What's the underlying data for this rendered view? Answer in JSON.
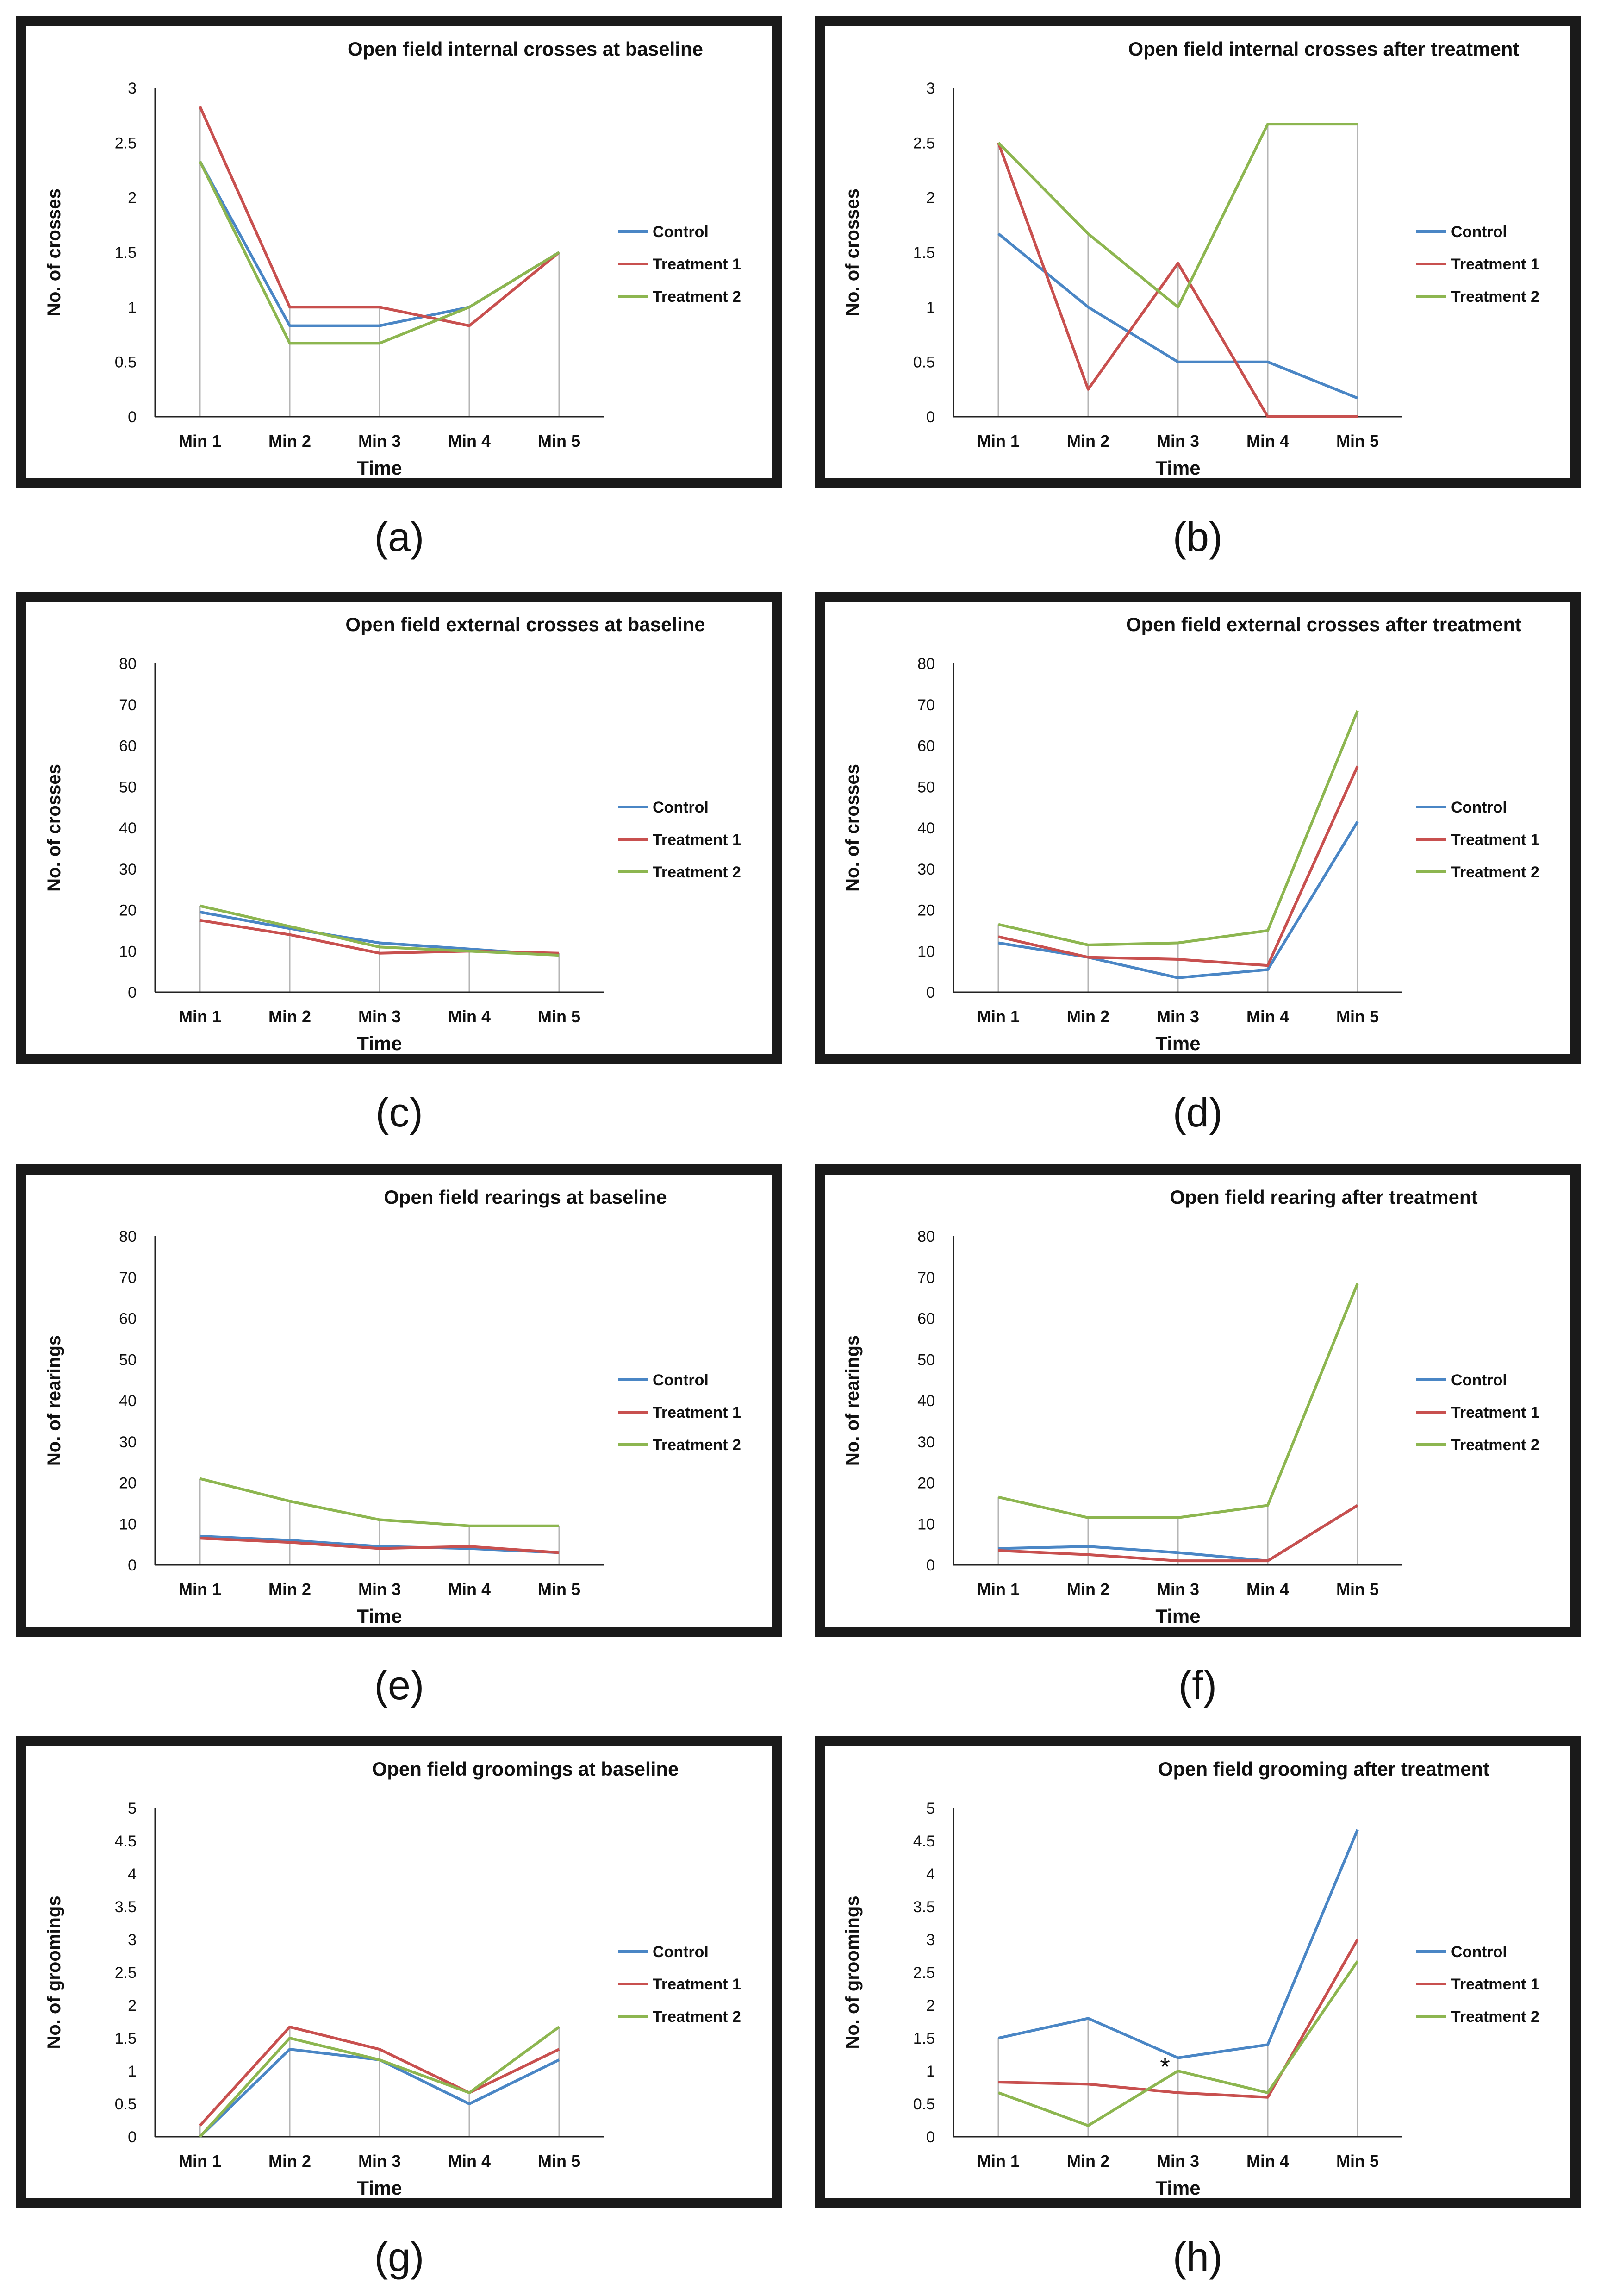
{
  "figure": {
    "colors": {
      "control": "#4A86C5",
      "treatment1": "#C8504F",
      "treatment2": "#8DB650",
      "frame": "#1a1a1a",
      "axis": "#222222",
      "dropline": "#b5b5b5"
    }
  },
  "chart_data": [
    {
      "id": "a",
      "label": "(a)",
      "type": "line",
      "title": "Open field internal crosses at baseline",
      "xlabel": "Time",
      "ylabel": "No. of crosses",
      "categories": [
        "Min 1",
        "Min 2",
        "Min 3",
        "Min 4",
        "Min 5"
      ],
      "ylim": [
        0,
        3
      ],
      "yticks": [
        "0",
        "0.5",
        "1",
        "1.5",
        "2",
        "2.5",
        "3"
      ],
      "legend": "right",
      "series": [
        {
          "name": "Control",
          "values": [
            2.33,
            0.83,
            0.83,
            1.0,
            1.5
          ]
        },
        {
          "name": "Treatment 1",
          "values": [
            2.83,
            1.0,
            1.0,
            0.83,
            1.5
          ]
        },
        {
          "name": "Treatment 2",
          "values": [
            2.33,
            0.67,
            0.67,
            1.0,
            1.5
          ]
        }
      ]
    },
    {
      "id": "b",
      "label": "(b)",
      "type": "line",
      "title": "Open field internal crosses after treatment",
      "xlabel": "Time",
      "ylabel": "No. of crosses",
      "categories": [
        "Min 1",
        "Min 2",
        "Min 3",
        "Min 4",
        "Min 5"
      ],
      "ylim": [
        0,
        3
      ],
      "yticks": [
        "0",
        "0.5",
        "1",
        "1.5",
        "2",
        "2.5",
        "3"
      ],
      "legend": "right",
      "series": [
        {
          "name": "Control",
          "values": [
            1.67,
            1.0,
            0.5,
            0.5,
            0.17
          ]
        },
        {
          "name": "Treatment 1",
          "values": [
            2.5,
            0.25,
            1.4,
            0.0,
            0.0
          ]
        },
        {
          "name": "Treatment 2",
          "values": [
            2.5,
            1.67,
            1.0,
            2.67,
            2.67
          ]
        }
      ]
    },
    {
      "id": "c",
      "label": "(c)",
      "type": "line",
      "title": "Open field external crosses at baseline",
      "xlabel": "Time",
      "ylabel": "No. of crosses",
      "categories": [
        "Min 1",
        "Min 2",
        "Min 3",
        "Min 4",
        "Min 5"
      ],
      "ylim": [
        0,
        80
      ],
      "yticks": [
        "0",
        "10",
        "20",
        "30",
        "40",
        "50",
        "60",
        "70",
        "80"
      ],
      "legend": "right",
      "series": [
        {
          "name": "Control",
          "values": [
            19.5,
            15.5,
            12.0,
            10.5,
            9.0
          ]
        },
        {
          "name": "Treatment 1",
          "values": [
            17.5,
            14.0,
            9.5,
            10.0,
            9.5
          ]
        },
        {
          "name": "Treatment 2",
          "values": [
            21.0,
            16.0,
            11.0,
            10.0,
            9.0
          ]
        }
      ]
    },
    {
      "id": "d",
      "label": "(d)",
      "type": "line",
      "title": "Open field external crosses after treatment",
      "xlabel": "Time",
      "ylabel": "No. of crosses",
      "categories": [
        "Min 1",
        "Min 2",
        "Min 3",
        "Min 4",
        "Min 5"
      ],
      "ylim": [
        0,
        80
      ],
      "yticks": [
        "0",
        "10",
        "20",
        "30",
        "40",
        "50",
        "60",
        "70",
        "80"
      ],
      "legend": "right",
      "series": [
        {
          "name": "Control",
          "values": [
            12.0,
            8.5,
            3.5,
            5.5,
            41.5
          ]
        },
        {
          "name": "Treatment 1",
          "values": [
            13.5,
            8.5,
            8.0,
            6.5,
            55.0
          ]
        },
        {
          "name": "Treatment 2",
          "values": [
            16.5,
            11.5,
            12.0,
            15.0,
            68.5
          ]
        }
      ]
    },
    {
      "id": "e",
      "label": "(e)",
      "type": "line",
      "title": "Open field rearings at baseline",
      "xlabel": "Time",
      "ylabel": "No. of rearings",
      "categories": [
        "Min 1",
        "Min 2",
        "Min 3",
        "Min 4",
        "Min 5"
      ],
      "ylim": [
        0,
        80
      ],
      "yticks": [
        "0",
        "10",
        "20",
        "30",
        "40",
        "50",
        "60",
        "70",
        "80"
      ],
      "legend": "right",
      "series": [
        {
          "name": "Control",
          "values": [
            7.0,
            6.0,
            4.5,
            4.0,
            3.0
          ]
        },
        {
          "name": "Treatment 1",
          "values": [
            6.5,
            5.5,
            4.0,
            4.5,
            3.0
          ]
        },
        {
          "name": "Treatment 2",
          "values": [
            21.0,
            15.5,
            11.0,
            9.5,
            9.5
          ]
        }
      ]
    },
    {
      "id": "f",
      "label": "(f)",
      "type": "line",
      "title": "Open field rearing after treatment",
      "xlabel": "Time",
      "ylabel": "No. of rearings",
      "categories": [
        "Min 1",
        "Min 2",
        "Min 3",
        "Min 4",
        "Min 5"
      ],
      "ylim": [
        0,
        80
      ],
      "yticks": [
        "0",
        "10",
        "20",
        "30",
        "40",
        "50",
        "60",
        "70",
        "80"
      ],
      "legend": "right",
      "series": [
        {
          "name": "Control",
          "values": [
            4.0,
            4.5,
            3.0,
            1.0,
            14.5
          ]
        },
        {
          "name": "Treatment 1",
          "values": [
            3.5,
            2.5,
            1.0,
            1.0,
            14.5
          ]
        },
        {
          "name": "Treatment 2",
          "values": [
            16.5,
            11.5,
            11.5,
            14.5,
            68.5
          ]
        }
      ]
    },
    {
      "id": "g",
      "label": "(g)",
      "type": "line",
      "title": "Open field groomings at baseline",
      "xlabel": "Time",
      "ylabel": "No. of groomings",
      "categories": [
        "Min 1",
        "Min 2",
        "Min 3",
        "Min 4",
        "Min 5"
      ],
      "ylim": [
        0,
        5
      ],
      "yticks": [
        "0",
        "0.5",
        "1",
        "1.5",
        "2",
        "2.5",
        "3",
        "3.5",
        "4",
        "4.5",
        "5"
      ],
      "legend": "right",
      "series": [
        {
          "name": "Control",
          "values": [
            0.0,
            1.33,
            1.17,
            0.5,
            1.17
          ]
        },
        {
          "name": "Treatment 1",
          "values": [
            0.17,
            1.67,
            1.33,
            0.67,
            1.33
          ]
        },
        {
          "name": "Treatment 2",
          "values": [
            0.0,
            1.5,
            1.17,
            0.67,
            1.67
          ]
        }
      ]
    },
    {
      "id": "h",
      "label": "(h)",
      "type": "line",
      "title": "Open field grooming after treatment",
      "xlabel": "Time",
      "ylabel": "No. of groomings",
      "categories": [
        "Min 1",
        "Min 2",
        "Min 3",
        "Min 4",
        "Min 5"
      ],
      "ylim": [
        0,
        5
      ],
      "yticks": [
        "0",
        "0.5",
        "1",
        "1.5",
        "2",
        "2.5",
        "3",
        "3.5",
        "4",
        "4.5",
        "5"
      ],
      "legend": "right",
      "annotation": {
        "text": "*",
        "category": "Min 3",
        "value": 1.0
      },
      "series": [
        {
          "name": "Control",
          "values": [
            1.5,
            1.8,
            1.2,
            1.4,
            4.67
          ]
        },
        {
          "name": "Treatment 1",
          "values": [
            0.83,
            0.8,
            0.67,
            0.6,
            3.0
          ]
        },
        {
          "name": "Treatment 2",
          "values": [
            0.67,
            0.17,
            1.0,
            0.67,
            2.67
          ]
        }
      ]
    }
  ]
}
